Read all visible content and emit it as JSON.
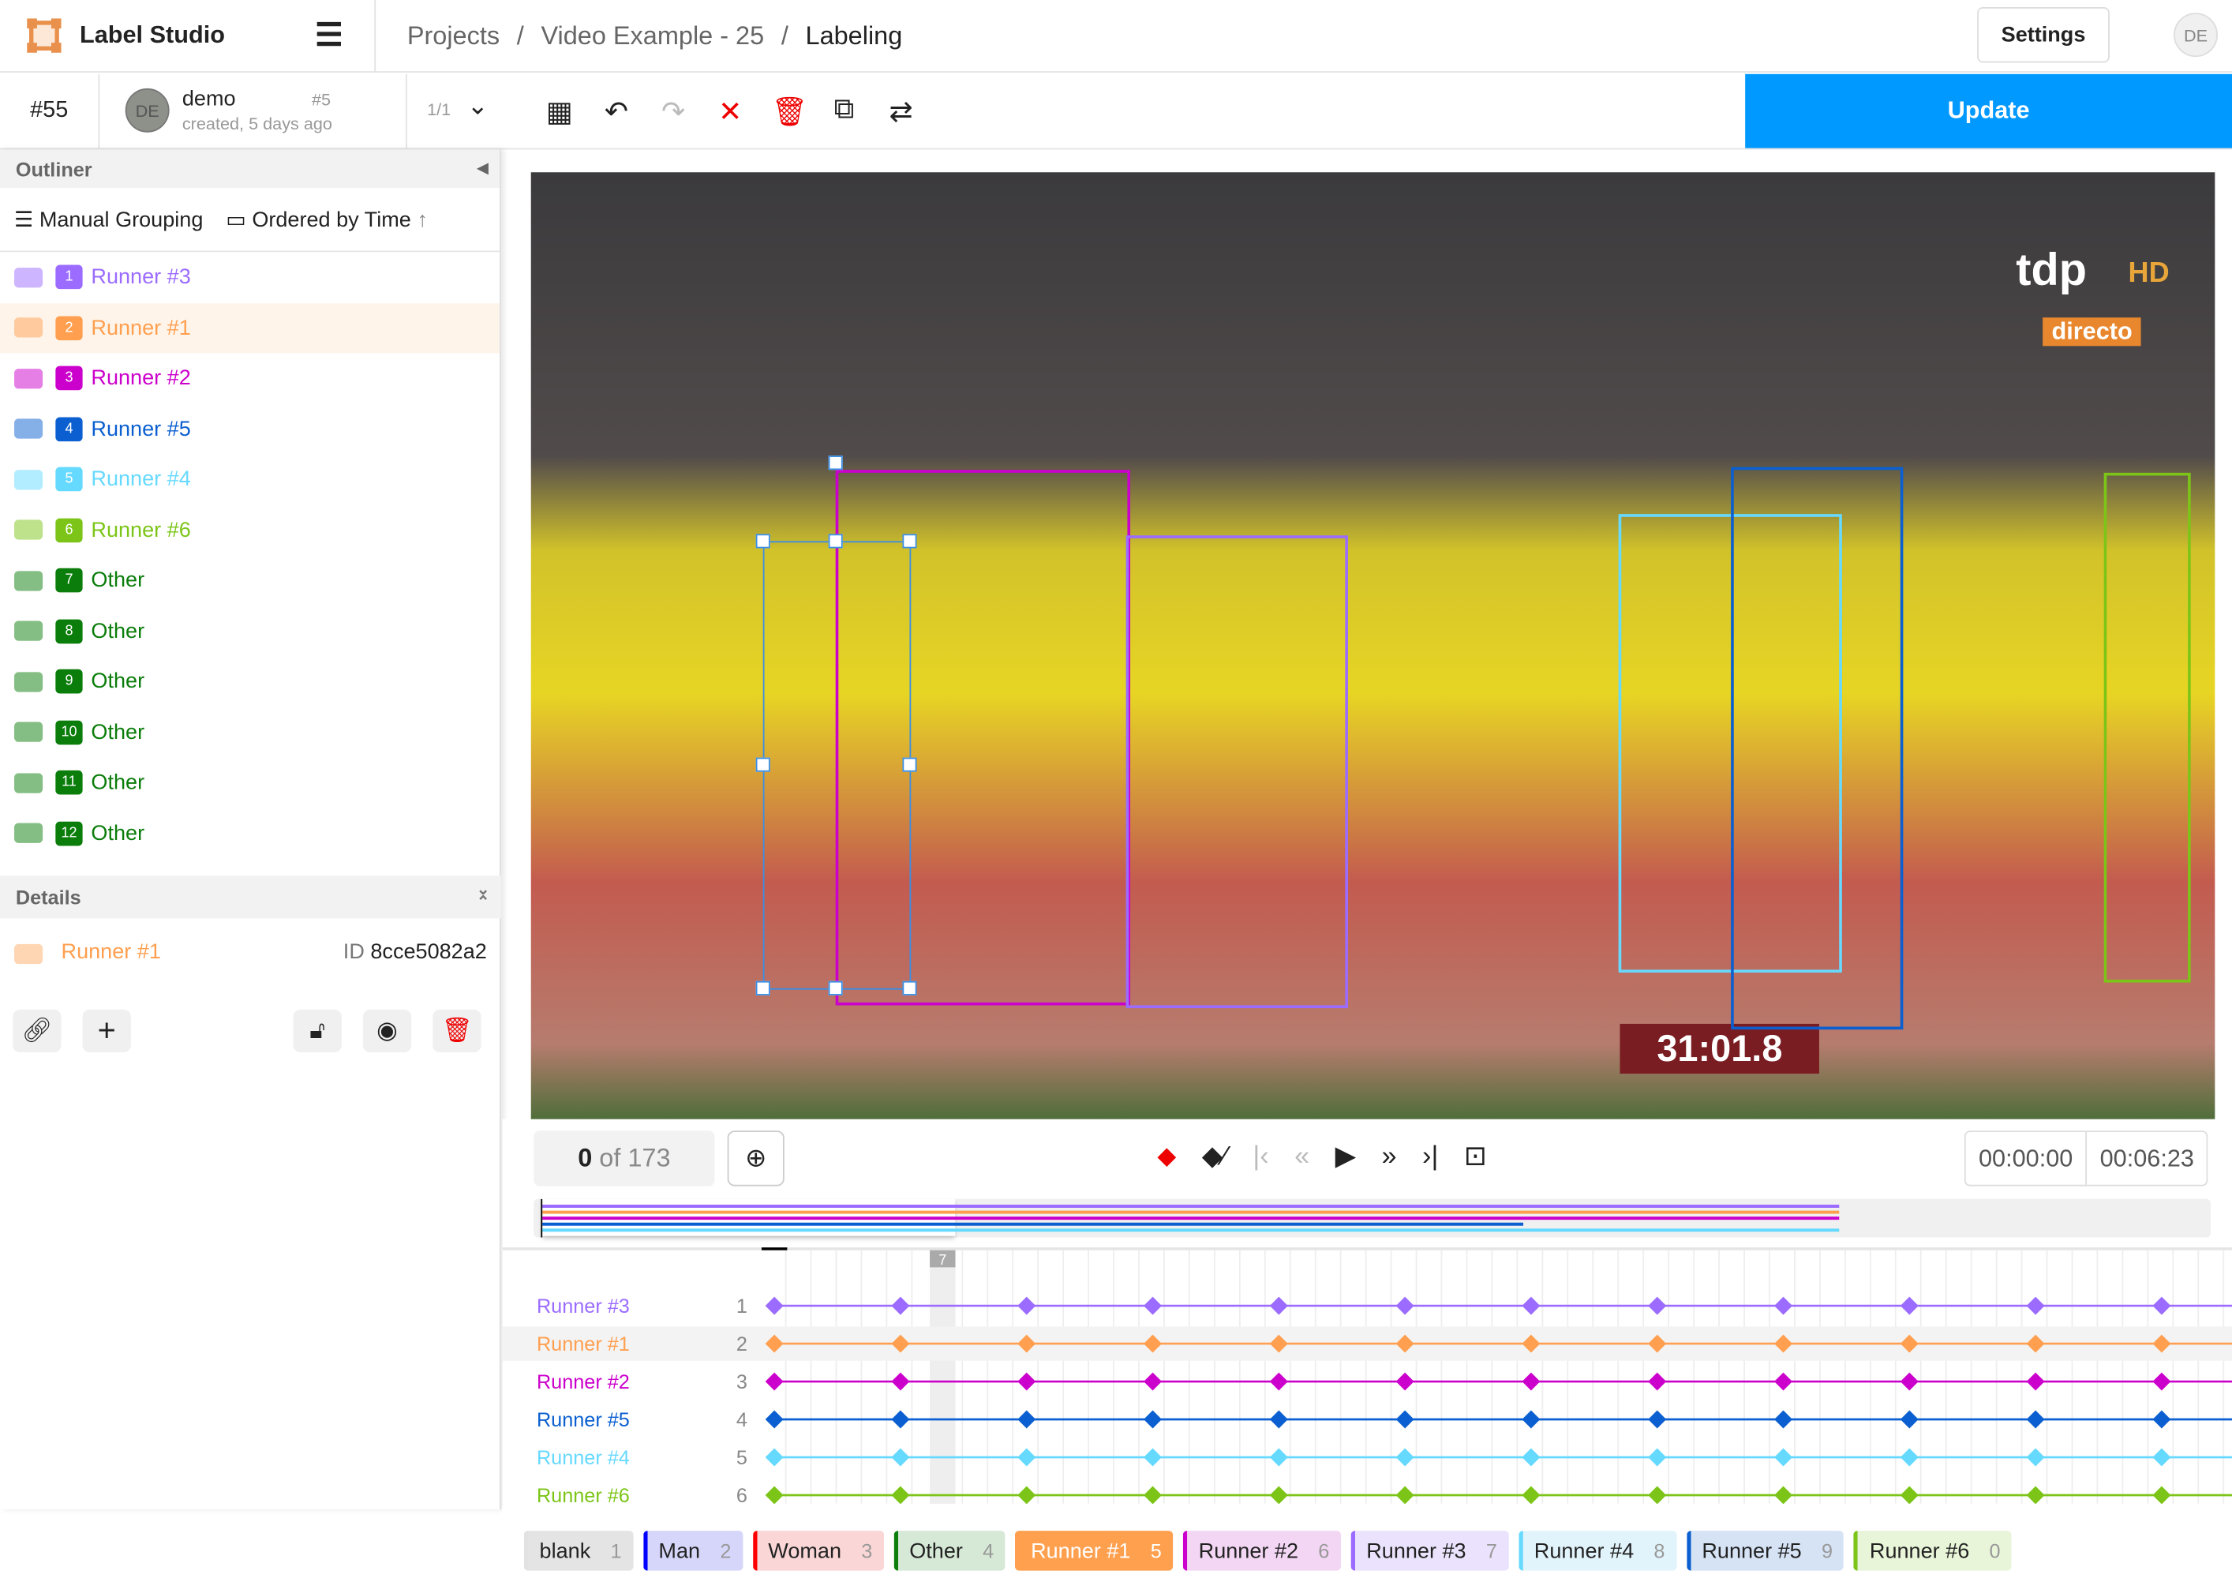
{
  "app": {
    "name": "Label Studio",
    "menu_icon": "hamburger-icon",
    "avatar": "DE"
  },
  "breadcrumb": [
    "Projects",
    "Video Example - 25",
    "Labeling"
  ],
  "settings_label": "Settings",
  "task": {
    "id": "#55",
    "annotator": "demo",
    "annotation_id": "#5",
    "created": "created, 5 days ago",
    "avatar": "DE",
    "pager": "1/1"
  },
  "toolbar": {
    "icons": [
      "grid-icon",
      "undo-icon",
      "redo-icon",
      "reject-icon",
      "delete-icon",
      "duplicate-icon",
      "swap-icon"
    ],
    "update_label": "Update"
  },
  "outliner": {
    "title": "Outliner",
    "grouping": "Manual Grouping",
    "ordering": "Ordered by Time",
    "items": [
      {
        "n": "1",
        "label": "Runner #3",
        "color": "#9b6cff"
      },
      {
        "n": "2",
        "label": "Runner #1",
        "color": "#ff9f4f",
        "selected": true
      },
      {
        "n": "3",
        "label": "Runner #2",
        "color": "#cc00cc"
      },
      {
        "n": "4",
        "label": "Runner #5",
        "color": "#0b5fd0"
      },
      {
        "n": "5",
        "label": "Runner #4",
        "color": "#66d9ff"
      },
      {
        "n": "6",
        "label": "Runner #6",
        "color": "#7cc518"
      },
      {
        "n": "7",
        "label": "Other",
        "color": "#0a7d0a"
      },
      {
        "n": "8",
        "label": "Other",
        "color": "#0a7d0a"
      },
      {
        "n": "9",
        "label": "Other",
        "color": "#0a7d0a"
      },
      {
        "n": "10",
        "label": "Other",
        "color": "#0a7d0a"
      },
      {
        "n": "11",
        "label": "Other",
        "color": "#0a7d0a"
      },
      {
        "n": "12",
        "label": "Other",
        "color": "#0a7d0a"
      }
    ]
  },
  "details": {
    "title": "Details",
    "region": "Runner #1",
    "id_label": "ID",
    "id_value": "8cce5082a2"
  },
  "video": {
    "overlay_brand": "tdp",
    "overlay_hd": "HD",
    "overlay_sub": "directo",
    "clock": "31:01.8"
  },
  "player": {
    "frame": "0",
    "of": "of 173",
    "time_current": "00:00:00",
    "time_total": "00:06:23",
    "hovered_frame": "7"
  },
  "timeline": {
    "rows": [
      {
        "label": "Runner #3",
        "n": "1",
        "color": "#9b6cff"
      },
      {
        "label": "Runner #1",
        "n": "2",
        "color": "#ff9f4f"
      },
      {
        "label": "Runner #2",
        "n": "3",
        "color": "#cc00cc"
      },
      {
        "label": "Runner #5",
        "n": "4",
        "color": "#0b5fd0"
      },
      {
        "label": "Runner #4",
        "n": "5",
        "color": "#66d9ff"
      },
      {
        "label": "Runner #6",
        "n": "6",
        "color": "#7cc518"
      }
    ],
    "keyframes": [
      1,
      6,
      11,
      16,
      21,
      26,
      31,
      36,
      41,
      46,
      51,
      56
    ],
    "minimap_end_fraction": [
      0.78,
      0.78,
      0.78,
      0.59,
      0.78
    ]
  },
  "labels": [
    {
      "name": "blank",
      "key": "1",
      "color": "#e2e2e2",
      "bg": "#e4e4e4"
    },
    {
      "name": "Man",
      "key": "2",
      "color": "#0000ff",
      "bg": "#d6d6fb"
    },
    {
      "name": "Woman",
      "key": "3",
      "color": "#ff0000",
      "bg": "#fad6d6"
    },
    {
      "name": "Other",
      "key": "4",
      "color": "#0a7d0a",
      "bg": "#d6e8d6"
    },
    {
      "name": "Runner #1",
      "key": "5",
      "color": "#ff9f4f",
      "bg": "#ffa04f",
      "active": true
    },
    {
      "name": "Runner #2",
      "key": "6",
      "color": "#cc00cc",
      "bg": "#f3d6f3"
    },
    {
      "name": "Runner #3",
      "key": "7",
      "color": "#9b6cff",
      "bg": "#ebe3fd"
    },
    {
      "name": "Runner #4",
      "key": "8",
      "color": "#66d9ff",
      "bg": "#e2f4fb"
    },
    {
      "name": "Runner #5",
      "key": "9",
      "color": "#0b5fd0",
      "bg": "#d5e3f5"
    },
    {
      "name": "Runner #6",
      "key": "0",
      "color": "#7cc518",
      "bg": "#e8f5d8"
    }
  ]
}
